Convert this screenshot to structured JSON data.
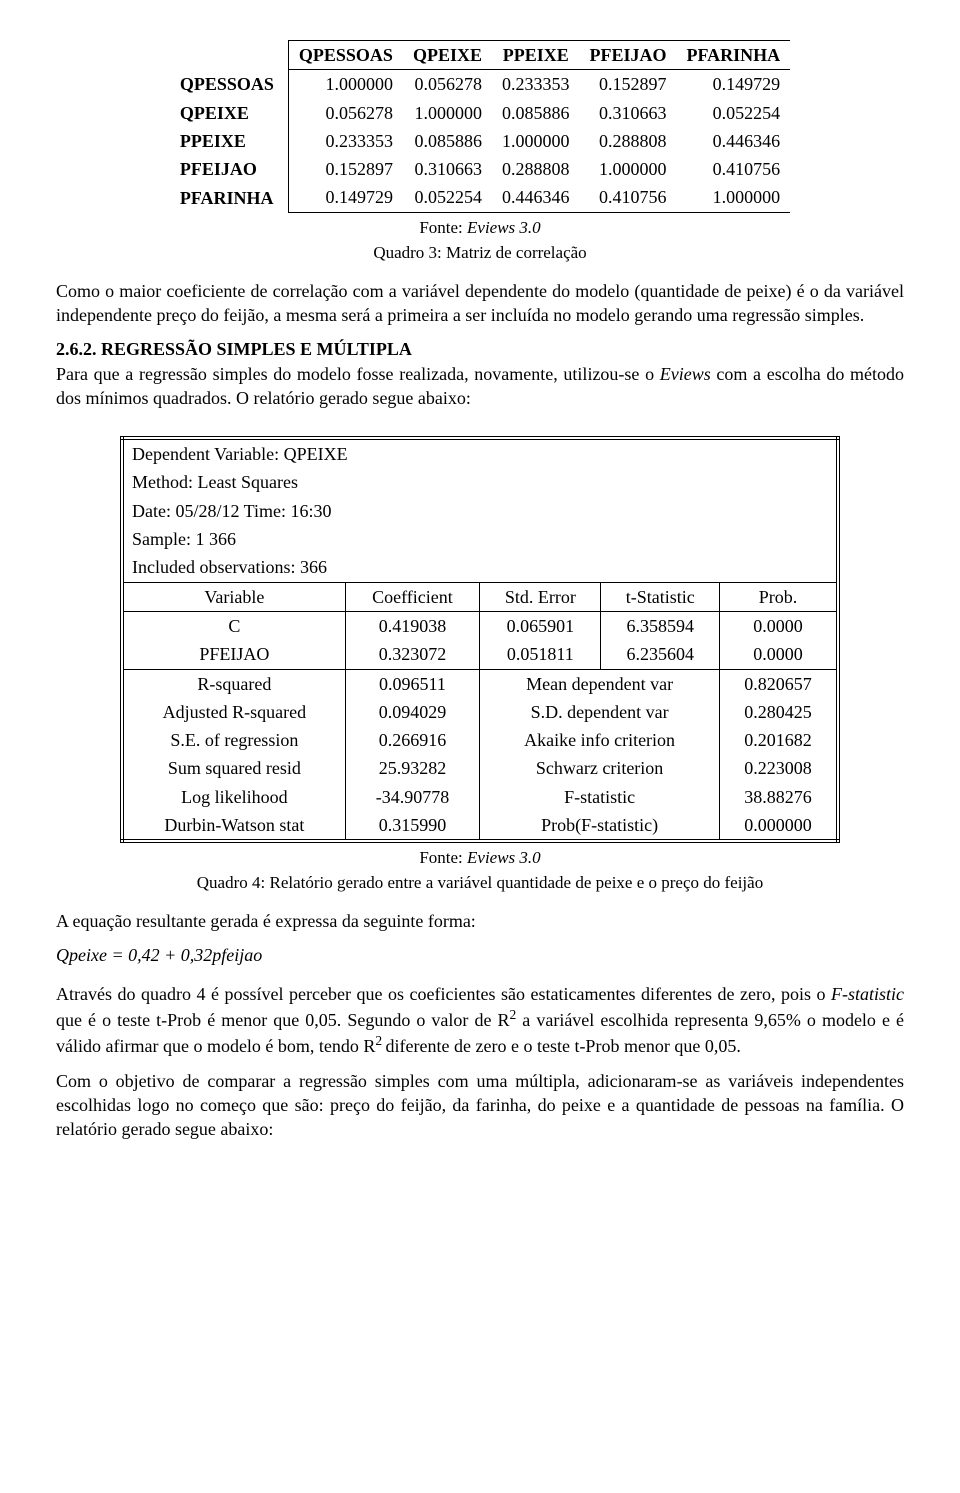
{
  "corr_table": {
    "cols": [
      "QPESSOAS",
      "QPEIXE",
      "PPEIXE",
      "PFEIJAO",
      "PFARINHA"
    ],
    "rows": [
      "QPESSOAS",
      "QPEIXE",
      "PPEIXE",
      "PFEIJAO",
      "PFARINHA"
    ],
    "data": [
      [
        "1.000000",
        "0.056278",
        "0.233353",
        "0.152897",
        "0.149729"
      ],
      [
        "0.056278",
        "1.000000",
        "0.085886",
        "0.310663",
        "0.052254"
      ],
      [
        "0.233353",
        "0.085886",
        "1.000000",
        "0.288808",
        "0.446346"
      ],
      [
        "0.152897",
        "0.310663",
        "0.288808",
        "1.000000",
        "0.410756"
      ],
      [
        "0.149729",
        "0.052254",
        "0.446346",
        "0.410756",
        "1.000000"
      ]
    ],
    "source": "Fonte: ",
    "source_it": "Eviews 3.0",
    "caption": "Quadro 3: Matriz de correlação"
  },
  "para1": "Como o maior coeficiente de correlação com a variável dependente do modelo (quantidade de peixe) é o da variável independente preço do feijão, a mesma será a primeira a ser incluída no modelo gerando uma regressão simples.",
  "section_num": "2.6.2. REGRESSÃO SIMPLES E MÚLTIPLA",
  "para2a": "Para que a regressão simples do modelo fosse realizada, novamente, utilizou-se o ",
  "para2_it": "Eviews",
  "para2b": " com a escolha do método dos mínimos quadrados. O relatório gerado segue abaixo:",
  "reg": {
    "h1": "Dependent Variable: QPEIXE",
    "h2": "Method: Least Squares",
    "h3": "Date: 05/28/12   Time: 16:30",
    "h4": "Sample: 1 366",
    "h5": "Included observations: 366",
    "cols": [
      "Variable",
      "Coefficient",
      "Std. Error",
      "t-Statistic",
      "Prob."
    ],
    "r1": [
      "C",
      "0.419038",
      "0.065901",
      "6.358594",
      "0.0000"
    ],
    "r2": [
      "PFEIJAO",
      "0.323072",
      "0.051811",
      "6.235604",
      "0.0000"
    ],
    "s": [
      [
        "R-squared",
        "0.096511",
        "Mean dependent var",
        "0.820657"
      ],
      [
        "Adjusted R-squared",
        "0.094029",
        "S.D. dependent var",
        "0.280425"
      ],
      [
        "S.E. of regression",
        "0.266916",
        "Akaike info criterion",
        "0.201682"
      ],
      [
        "Sum squared resid",
        "25.93282",
        "Schwarz criterion",
        "0.223008"
      ],
      [
        "Log likelihood",
        "-34.90778",
        "F-statistic",
        "38.88276"
      ],
      [
        "Durbin-Watson stat",
        "0.315990",
        "Prob(F-statistic)",
        "0.000000"
      ]
    ],
    "source": "Fonte: ",
    "source_it": "Eviews 3.0",
    "caption": "Quadro 4: Relatório gerado entre a variável quantidade de peixe e o preço do feijão"
  },
  "para3": "A equação resultante gerada é expressa da seguinte forma:",
  "equation": "Qpeixe = 0,42 + 0,32pfeijao",
  "para4a": "Através do quadro 4 é possível perceber que os coeficientes são estaticamentes diferentes de zero, pois o ",
  "para4_it": "F-statistic",
  "para4b": " que é o teste t-Prob é menor que 0,05. Segundo o valor de R",
  "para4c": " a variável escolhida representa 9,65% o modelo e é válido afirmar que o modelo é bom, tendo R",
  "para4d": " diferente de zero e o teste t-Prob menor que 0,05.",
  "para5": "Com o objetivo de comparar a regressão simples com uma múltipla, adicionaram-se as variáveis independentes escolhidas logo no começo que são: preço do feijão, da farinha, do peixe e a quantidade de pessoas na família. O relatório gerado segue abaixo:"
}
